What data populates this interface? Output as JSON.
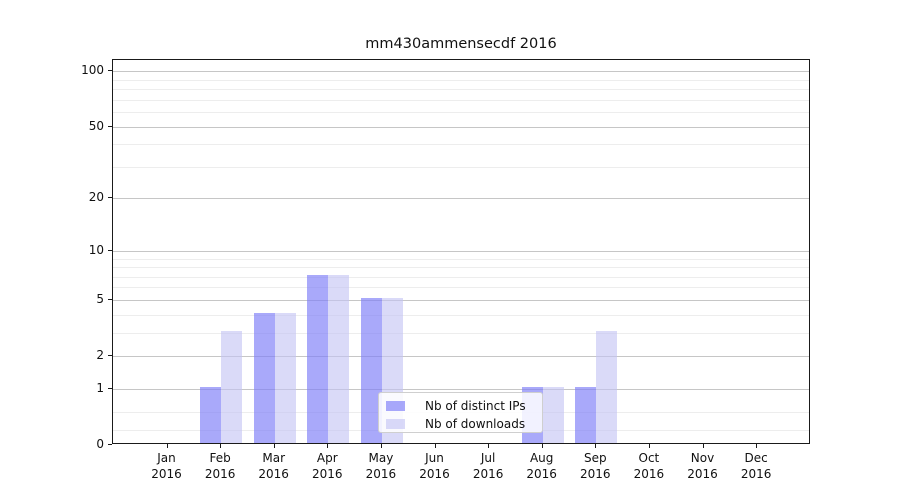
{
  "chart_data": {
    "type": "bar",
    "title": "mm430ammensecdf 2016",
    "x_tick_months": [
      "Jan",
      "Feb",
      "Mar",
      "Apr",
      "May",
      "Jun",
      "Jul",
      "Aug",
      "Sep",
      "Oct",
      "Nov",
      "Dec"
    ],
    "x_tick_year": "2016",
    "series": [
      {
        "name": "Nb of distinct IPs",
        "color": "#7d7df8a8",
        "values": [
          0,
          1,
          4,
          7,
          5,
          0,
          0,
          1,
          1,
          0,
          0,
          0
        ]
      },
      {
        "name": "Nb of downloads",
        "color": "#c3c3f39e",
        "values": [
          0,
          3,
          4,
          7,
          5,
          0,
          0,
          1,
          3,
          0,
          0,
          0
        ]
      }
    ],
    "yscale": "log1p",
    "ylim": [
      0,
      115
    ],
    "y_major_ticks": [
      0,
      1,
      2,
      5,
      10,
      20,
      50,
      100
    ],
    "y_minor_ticks": [
      0.2,
      0.5,
      3,
      4,
      6,
      7,
      8,
      9,
      30,
      40,
      60,
      70,
      80,
      90
    ],
    "grid": "both",
    "legend_position": "lower-center-right-inside",
    "background_color": "#ffffff"
  }
}
